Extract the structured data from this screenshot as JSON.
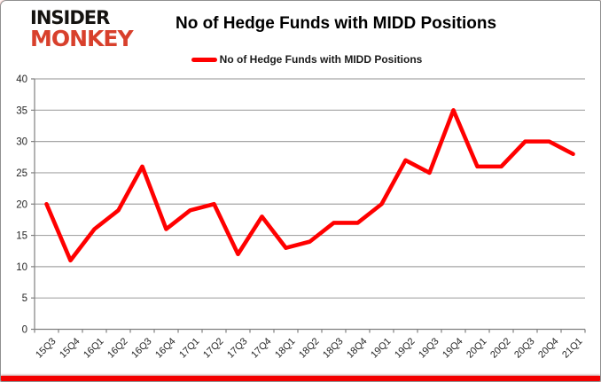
{
  "logo": {
    "line1": "INSIDER",
    "line2": "MONKEY",
    "line2_color": "#d8402c"
  },
  "header": {
    "title": "No of Hedge Funds with MIDD Positions"
  },
  "legend": {
    "label": "No of Hedge Funds with MIDD Positions",
    "swatch_color": "#ff0000"
  },
  "colors": {
    "line": "#ff0000",
    "grid": "#a6a6a6",
    "axis": "#808080",
    "tick_label": "#262626",
    "bottom_bar": "#f40000"
  },
  "chart_data": {
    "type": "line",
    "title": "No of Hedge Funds with MIDD Positions",
    "series_name": "No of Hedge Funds with MIDD Positions",
    "categories": [
      "15Q3",
      "15Q4",
      "16Q1",
      "16Q2",
      "16Q3",
      "16Q4",
      "17Q1",
      "17Q2",
      "17Q3",
      "17Q4",
      "18Q1",
      "18Q2",
      "18Q3",
      "18Q4",
      "19Q1",
      "19Q2",
      "19Q3",
      "19Q4",
      "20Q1",
      "20Q2",
      "20Q3",
      "20Q4",
      "21Q1"
    ],
    "values": [
      20,
      11,
      16,
      19,
      26,
      16,
      19,
      20,
      12,
      18,
      13,
      14,
      17,
      17,
      20,
      27,
      25,
      35,
      26,
      26,
      30,
      30,
      28
    ],
    "xlabel": "",
    "ylabel": "",
    "ylim": [
      0,
      40
    ],
    "ytick_step": 5,
    "grid": true,
    "legend_position": "top",
    "line_color": "#ff0000"
  }
}
